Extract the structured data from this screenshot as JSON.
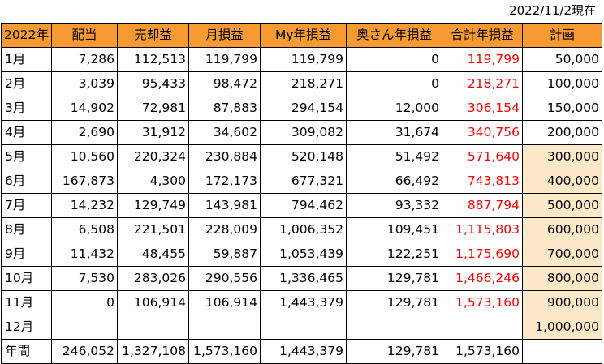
{
  "date_label": "2022/11/2現在",
  "headers": [
    "2022年",
    "配当",
    "売却益",
    "月損益",
    "My年損益",
    "奥さん年損益",
    "合計年損益",
    "計画"
  ],
  "rows": [
    {
      "month": "1月",
      "dividend": "7,286",
      "sale": "112,513",
      "monthly": "119,799",
      "my_year": "119,799",
      "wife_year": "0",
      "total_year": "119,799",
      "plan": "50,000",
      "plan_highlight": false
    },
    {
      "month": "2月",
      "dividend": "3,039",
      "sale": "95,433",
      "monthly": "98,472",
      "my_year": "218,271",
      "wife_year": "0",
      "total_year": "218,271",
      "plan": "100,000",
      "plan_highlight": false
    },
    {
      "month": "3月",
      "dividend": "14,902",
      "sale": "72,981",
      "monthly": "87,883",
      "my_year": "294,154",
      "wife_year": "12,000",
      "total_year": "306,154",
      "plan": "150,000",
      "plan_highlight": false
    },
    {
      "month": "4月",
      "dividend": "2,690",
      "sale": "31,912",
      "monthly": "34,602",
      "my_year": "309,082",
      "wife_year": "31,674",
      "total_year": "340,756",
      "plan": "200,000",
      "plan_highlight": false
    },
    {
      "month": "5月",
      "dividend": "10,560",
      "sale": "220,324",
      "monthly": "230,884",
      "my_year": "520,148",
      "wife_year": "51,492",
      "total_year": "571,640",
      "plan": "300,000",
      "plan_highlight": true
    },
    {
      "month": "6月",
      "dividend": "167,873",
      "sale": "4,300",
      "monthly": "172,173",
      "my_year": "677,321",
      "wife_year": "66,492",
      "total_year": "743,813",
      "plan": "400,000",
      "plan_highlight": true
    },
    {
      "month": "7月",
      "dividend": "14,232",
      "sale": "129,749",
      "monthly": "143,981",
      "my_year": "794,462",
      "wife_year": "93,332",
      "total_year": "887,794",
      "plan": "500,000",
      "plan_highlight": true
    },
    {
      "month": "8月",
      "dividend": "6,508",
      "sale": "221,501",
      "monthly": "228,009",
      "my_year": "1,006,352",
      "wife_year": "109,451",
      "total_year": "1,115,803",
      "plan": "600,000",
      "plan_highlight": true
    },
    {
      "month": "9月",
      "dividend": "11,432",
      "sale": "48,455",
      "monthly": "59,887",
      "my_year": "1,053,439",
      "wife_year": "122,251",
      "total_year": "1,175,690",
      "plan": "700,000",
      "plan_highlight": true
    },
    {
      "month": "10月",
      "dividend": "7,530",
      "sale": "283,026",
      "monthly": "290,556",
      "my_year": "1,336,465",
      "wife_year": "129,781",
      "total_year": "1,466,246",
      "plan": "800,000",
      "plan_highlight": true
    },
    {
      "month": "11月",
      "dividend": "0",
      "sale": "106,914",
      "monthly": "106,914",
      "my_year": "1,443,379",
      "wife_year": "129,781",
      "total_year": "1,573,160",
      "plan": "900,000",
      "plan_highlight": true
    },
    {
      "month": "12月",
      "dividend": "",
      "sale": "",
      "monthly": "",
      "my_year": "",
      "wife_year": "",
      "total_year": "",
      "plan": "1,000,000",
      "plan_highlight": true
    }
  ],
  "annual": {
    "label": "年間",
    "dividend": "246,052",
    "sale": "1,327,108",
    "monthly": "1,573,160",
    "my_year": "1,443,379",
    "wife_year": "129,781",
    "total_year": "1,573,160",
    "plan": ""
  },
  "colors": {
    "header_bg": "#f79a32",
    "total_text": "#ff0000",
    "plan_highlight_bg": "#fde9c8"
  }
}
